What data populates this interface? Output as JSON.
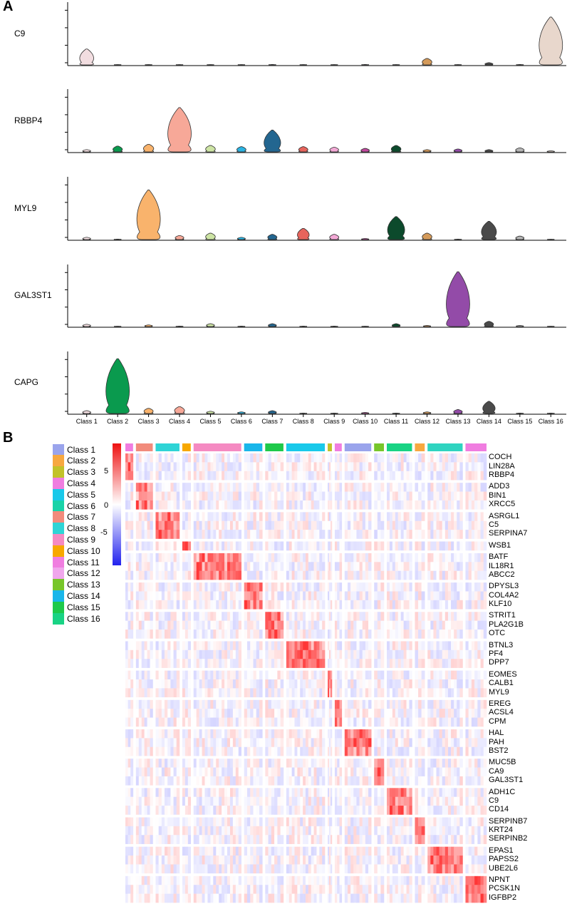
{
  "panel_labels": {
    "a": "A",
    "b": "B"
  },
  "chart_data": [
    {
      "type": "violin",
      "panel": "A",
      "categories": [
        "Class 1",
        "Class 2",
        "Class 3",
        "Class 4",
        "Class 5",
        "Class 6",
        "Class 7",
        "Class 8",
        "Class 9",
        "Class 10",
        "Class 11",
        "Class 12",
        "Class 13",
        "Class 14",
        "Class 15",
        "Class 16"
      ],
      "colors": [
        "#f2dde0",
        "#0a9a4e",
        "#f9b36c",
        "#f7a898",
        "#cde4a4",
        "#2bb3e2",
        "#236690",
        "#e7645c",
        "#f3a9d6",
        "#c2489e",
        "#0c4a2c",
        "#d49a5a",
        "#934ba8",
        "#4a4a4a",
        "#b5b5b5",
        "#e8d7cc"
      ],
      "genes": [
        {
          "name": "C9",
          "values": [
            0.28,
            0.01,
            0.01,
            0.01,
            0.01,
            0.01,
            0.02,
            0.01,
            0.01,
            0.02,
            0.01,
            0.12,
            0.01,
            0.05,
            0.02,
            0.82
          ]
        },
        {
          "name": "RBBP4",
          "values": [
            0.05,
            0.11,
            0.14,
            0.76,
            0.12,
            0.1,
            0.38,
            0.1,
            0.09,
            0.07,
            0.12,
            0.05,
            0.06,
            0.05,
            0.08,
            0.03
          ]
        },
        {
          "name": "MYL9",
          "values": [
            0.05,
            0.02,
            0.85,
            0.08,
            0.12,
            0.05,
            0.1,
            0.2,
            0.1,
            0.03,
            0.4,
            0.12,
            0.02,
            0.32,
            0.07,
            0.01
          ]
        },
        {
          "name": "GAL3ST1",
          "values": [
            0.05,
            0.01,
            0.04,
            0.02,
            0.06,
            0.02,
            0.06,
            0.02,
            0.02,
            0.01,
            0.06,
            0.03,
            0.95,
            0.1,
            0.03,
            0.01
          ]
        },
        {
          "name": "CAPG",
          "values": [
            0.06,
            0.95,
            0.1,
            0.13,
            0.05,
            0.04,
            0.06,
            0.02,
            0.02,
            0.03,
            0.02,
            0.04,
            0.08,
            0.22,
            0.02,
            0.02
          ]
        }
      ]
    },
    {
      "type": "heatmap",
      "panel": "B",
      "color_scale": {
        "min": -8,
        "max": 8,
        "ticks": [
          "5",
          "0",
          "-5"
        ],
        "low_color": "#2222ee",
        "mid_color": "#ffffff",
        "high_color": "#ee1111"
      },
      "column_groups": [
        "#f07de0",
        "#f28b7c",
        "#2fd4d6",
        "#f7a800",
        "#f58ac2",
        "#19b6ea",
        "#1ec94a",
        "#19c9ea",
        "#c2c22a",
        "#f07de0",
        "#9aa4ec",
        "#77c62a",
        "#19d384",
        "#f7a840",
        "#2fd4c0",
        "#f07de0"
      ],
      "genes": [
        "COCH",
        "LIN28A",
        "RBBP4",
        "ADD3",
        "BIN1",
        "XRCC5",
        "ASRGL1",
        "C5",
        "SERPINA7",
        "WSB1",
        "BATF",
        "IL18R1",
        "ABCC2",
        "DPYSL3",
        "COL4A2",
        "KLF10",
        "STRIT1",
        "PLA2G1B",
        "OTC",
        "BTNL3",
        "PF4",
        "DPP7",
        "EOMES",
        "CALB1",
        "MYL9",
        "EREG",
        "ACSL4",
        "CPM",
        "HAL",
        "PAH",
        "BST2",
        "MUC5B",
        "CA9",
        "GAL3ST1",
        "ADH1C",
        "C9",
        "CD14",
        "SERPINB7",
        "KRT24",
        "SERPINB2",
        "EPAS1",
        "PAPSS2",
        "UBE2L6",
        "NPNT",
        "PCSK1N",
        "IGFBP2"
      ],
      "gene_blocks": [
        3,
        3,
        3,
        1,
        3,
        3,
        3,
        3,
        3,
        3,
        3,
        3,
        3,
        3,
        3,
        3
      ]
    }
  ],
  "legend": [
    {
      "label": "Class 1",
      "color": "#9aa4ec"
    },
    {
      "label": "Class 2",
      "color": "#f7a840"
    },
    {
      "label": "Class 3",
      "color": "#c2c22a"
    },
    {
      "label": "Class 4",
      "color": "#f07de0"
    },
    {
      "label": "Class 5",
      "color": "#19c9ea"
    },
    {
      "label": "Class 6",
      "color": "#19d3a8"
    },
    {
      "label": "Class 7",
      "color": "#f28b7c"
    },
    {
      "label": "Class 8",
      "color": "#2fd4d6"
    },
    {
      "label": "Class 9",
      "color": "#f58ac2"
    },
    {
      "label": "Class 10",
      "color": "#f7a800"
    },
    {
      "label": "Class 11",
      "color": "#f07de0"
    },
    {
      "label": "Class 12",
      "color": "#f0a6ec"
    },
    {
      "label": "Class 13",
      "color": "#77c62a"
    },
    {
      "label": "Class 14",
      "color": "#19b6ea"
    },
    {
      "label": "Class 15",
      "color": "#1ec94a"
    },
    {
      "label": "Class 16",
      "color": "#19d384"
    }
  ]
}
